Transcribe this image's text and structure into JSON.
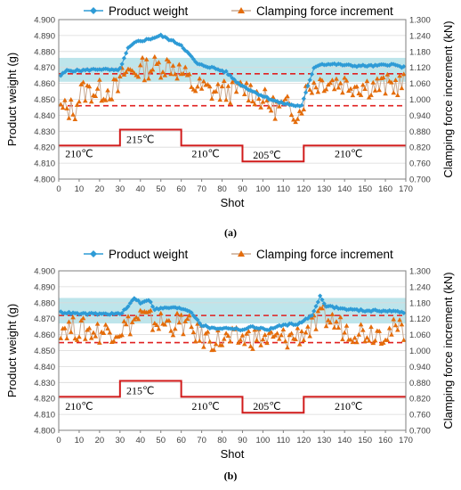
{
  "captions": [
    "(a)",
    "(b)"
  ],
  "chart_data": [
    {
      "type": "line",
      "id": "a",
      "xlabel": "Shot",
      "ylabel": "Product weight (g)",
      "y2label": "Clamping force increment (kN)",
      "xlim": [
        0,
        170
      ],
      "ylim": [
        4.8,
        4.9
      ],
      "y2lim": [
        0.7,
        1.3
      ],
      "xticks": [
        0,
        10,
        20,
        30,
        40,
        50,
        60,
        70,
        80,
        90,
        100,
        110,
        120,
        130,
        140,
        150,
        160,
        170
      ],
      "yticks": [
        "4.800",
        "4.810",
        "4.820",
        "4.830",
        "4.840",
        "4.850",
        "4.860",
        "4.870",
        "4.880",
        "4.890",
        "4.900"
      ],
      "y2ticks": [
        "0.700",
        "0.760",
        "0.820",
        "0.880",
        "0.940",
        "1.000",
        "1.060",
        "1.120",
        "1.180",
        "1.240",
        "1.300"
      ],
      "legend": {
        "position": "top",
        "entries": [
          "Product weight",
          "Clamping force increment"
        ]
      },
      "colors": {
        "weight": "#2E9BD6",
        "force_marker": "#E46C0A",
        "force_line": "#C8A890",
        "temp": "#D11B1B",
        "band": "#A8DCE4",
        "dashed": "#E02020"
      },
      "band": {
        "y_low": 4.861,
        "y_high": 4.876
      },
      "dashed_lines": [
        4.866,
        4.846
      ],
      "temperature_profile": {
        "points": [
          [
            0,
            4.821
          ],
          [
            30,
            4.821
          ],
          [
            30,
            4.831
          ],
          [
            60,
            4.831
          ],
          [
            60,
            4.821
          ],
          [
            90,
            4.821
          ],
          [
            90,
            4.811
          ],
          [
            120,
            4.811
          ],
          [
            120,
            4.821
          ],
          [
            170,
            4.821
          ]
        ],
        "labels": [
          {
            "text": "210℃",
            "x": 10,
            "y": 4.816
          },
          {
            "text": "215℃",
            "x": 40,
            "y": 4.825
          },
          {
            "text": "210℃",
            "x": 72,
            "y": 4.816
          },
          {
            "text": "205℃",
            "x": 102,
            "y": 4.815
          },
          {
            "text": "210℃",
            "x": 142,
            "y": 4.816
          }
        ]
      },
      "series": [
        {
          "name": "Product weight",
          "axis": "left",
          "anchors": [
            [
              1,
              4.865
            ],
            [
              4,
              4.868
            ],
            [
              10,
              4.868
            ],
            [
              20,
              4.869
            ],
            [
              29,
              4.868
            ],
            [
              31,
              4.872
            ],
            [
              34,
              4.882
            ],
            [
              38,
              4.886
            ],
            [
              45,
              4.888
            ],
            [
              50,
              4.89
            ],
            [
              55,
              4.887
            ],
            [
              60,
              4.884
            ],
            [
              64,
              4.878
            ],
            [
              68,
              4.872
            ],
            [
              75,
              4.87
            ],
            [
              82,
              4.867
            ],
            [
              88,
              4.86
            ],
            [
              95,
              4.855
            ],
            [
              102,
              4.851
            ],
            [
              108,
              4.848
            ],
            [
              112,
              4.847
            ],
            [
              116,
              4.846
            ],
            [
              119,
              4.846
            ],
            [
              122,
              4.858
            ],
            [
              125,
              4.87
            ],
            [
              128,
              4.872
            ],
            [
              135,
              4.872
            ],
            [
              145,
              4.871
            ],
            [
              155,
              4.871
            ],
            [
              163,
              4.872
            ],
            [
              169,
              4.87
            ]
          ]
        },
        {
          "name": "Clamping force increment",
          "axis": "right",
          "anchors": [
            [
              1,
              0.96
            ],
            [
              8,
              0.965
            ],
            [
              11,
              1.03
            ],
            [
              20,
              1.03
            ],
            [
              29,
              1.04
            ],
            [
              32,
              1.1
            ],
            [
              45,
              1.12
            ],
            [
              55,
              1.13
            ],
            [
              60,
              1.1
            ],
            [
              66,
              1.05
            ],
            [
              75,
              1.03
            ],
            [
              85,
              1.03
            ],
            [
              92,
              1.04
            ],
            [
              100,
              1.0
            ],
            [
              105,
              0.97
            ],
            [
              112,
              0.97
            ],
            [
              118,
              0.95
            ],
            [
              122,
              1.05
            ],
            [
              130,
              1.07
            ],
            [
              140,
              1.06
            ],
            [
              150,
              1.05
            ],
            [
              160,
              1.05
            ],
            [
              169,
              1.06
            ]
          ]
        }
      ]
    },
    {
      "type": "line",
      "id": "b",
      "xlabel": "Shot",
      "ylabel": "Product weight (g)",
      "y2label": "Clamping force increment (kN)",
      "xlim": [
        0,
        170
      ],
      "ylim": [
        4.8,
        4.9
      ],
      "y2lim": [
        0.7,
        1.3
      ],
      "xticks": [
        0,
        10,
        20,
        30,
        40,
        50,
        60,
        70,
        80,
        90,
        100,
        110,
        120,
        130,
        140,
        150,
        160,
        170
      ],
      "yticks": [
        "4.800",
        "4.810",
        "4.820",
        "4.830",
        "4.840",
        "4.850",
        "4.860",
        "4.870",
        "4.880",
        "4.890",
        "4.900"
      ],
      "y2ticks": [
        "0.700",
        "0.760",
        "0.820",
        "0.880",
        "0.940",
        "1.000",
        "1.060",
        "1.120",
        "1.180",
        "1.240",
        "1.300"
      ],
      "legend": {
        "position": "top",
        "entries": [
          "Product weight",
          "Clamping force increment"
        ]
      },
      "colors": {
        "weight": "#2E9BD6",
        "force_marker": "#E46C0A",
        "force_line": "#C8A890",
        "temp": "#D11B1B",
        "band": "#A8DCE4",
        "dashed": "#E02020"
      },
      "band": {
        "y_low": 4.867,
        "y_high": 4.883
      },
      "dashed_lines": [
        4.872,
        4.855
      ],
      "temperature_profile": {
        "points": [
          [
            0,
            4.821
          ],
          [
            30,
            4.821
          ],
          [
            30,
            4.831
          ],
          [
            60,
            4.831
          ],
          [
            60,
            4.821
          ],
          [
            90,
            4.821
          ],
          [
            90,
            4.811
          ],
          [
            120,
            4.811
          ],
          [
            120,
            4.821
          ],
          [
            170,
            4.821
          ]
        ],
        "labels": [
          {
            "text": "210℃",
            "x": 10,
            "y": 4.815
          },
          {
            "text": "215℃",
            "x": 40,
            "y": 4.825
          },
          {
            "text": "210℃",
            "x": 72,
            "y": 4.815
          },
          {
            "text": "205℃",
            "x": 102,
            "y": 4.815
          },
          {
            "text": "210℃",
            "x": 142,
            "y": 4.815
          }
        ]
      },
      "series": [
        {
          "name": "Product weight",
          "axis": "left",
          "anchors": [
            [
              1,
              4.874
            ],
            [
              10,
              4.873
            ],
            [
              20,
              4.873
            ],
            [
              30,
              4.873
            ],
            [
              33,
              4.876
            ],
            [
              37,
              4.883
            ],
            [
              40,
              4.88
            ],
            [
              44,
              4.882
            ],
            [
              47,
              4.876
            ],
            [
              55,
              4.877
            ],
            [
              62,
              4.876
            ],
            [
              65,
              4.874
            ],
            [
              70,
              4.866
            ],
            [
              75,
              4.864
            ],
            [
              85,
              4.864
            ],
            [
              90,
              4.863
            ],
            [
              95,
              4.865
            ],
            [
              102,
              4.863
            ],
            [
              110,
              4.866
            ],
            [
              118,
              4.867
            ],
            [
              124,
              4.872
            ],
            [
              128,
              4.884
            ],
            [
              131,
              4.878
            ],
            [
              140,
              4.876
            ],
            [
              150,
              4.875
            ],
            [
              160,
              4.875
            ],
            [
              169,
              4.874
            ]
          ]
        },
        {
          "name": "Clamping force increment",
          "axis": "right",
          "anchors": [
            [
              1,
              1.09
            ],
            [
              10,
              1.08
            ],
            [
              20,
              1.07
            ],
            [
              30,
              1.08
            ],
            [
              35,
              1.1
            ],
            [
              40,
              1.13
            ],
            [
              45,
              1.11
            ],
            [
              55,
              1.1
            ],
            [
              62,
              1.1
            ],
            [
              68,
              1.06
            ],
            [
              75,
              1.04
            ],
            [
              85,
              1.04
            ],
            [
              95,
              1.05
            ],
            [
              105,
              1.04
            ],
            [
              115,
              1.05
            ],
            [
              125,
              1.09
            ],
            [
              130,
              1.13
            ],
            [
              140,
              1.08
            ],
            [
              150,
              1.07
            ],
            [
              160,
              1.07
            ],
            [
              169,
              1.08
            ]
          ]
        }
      ]
    }
  ]
}
